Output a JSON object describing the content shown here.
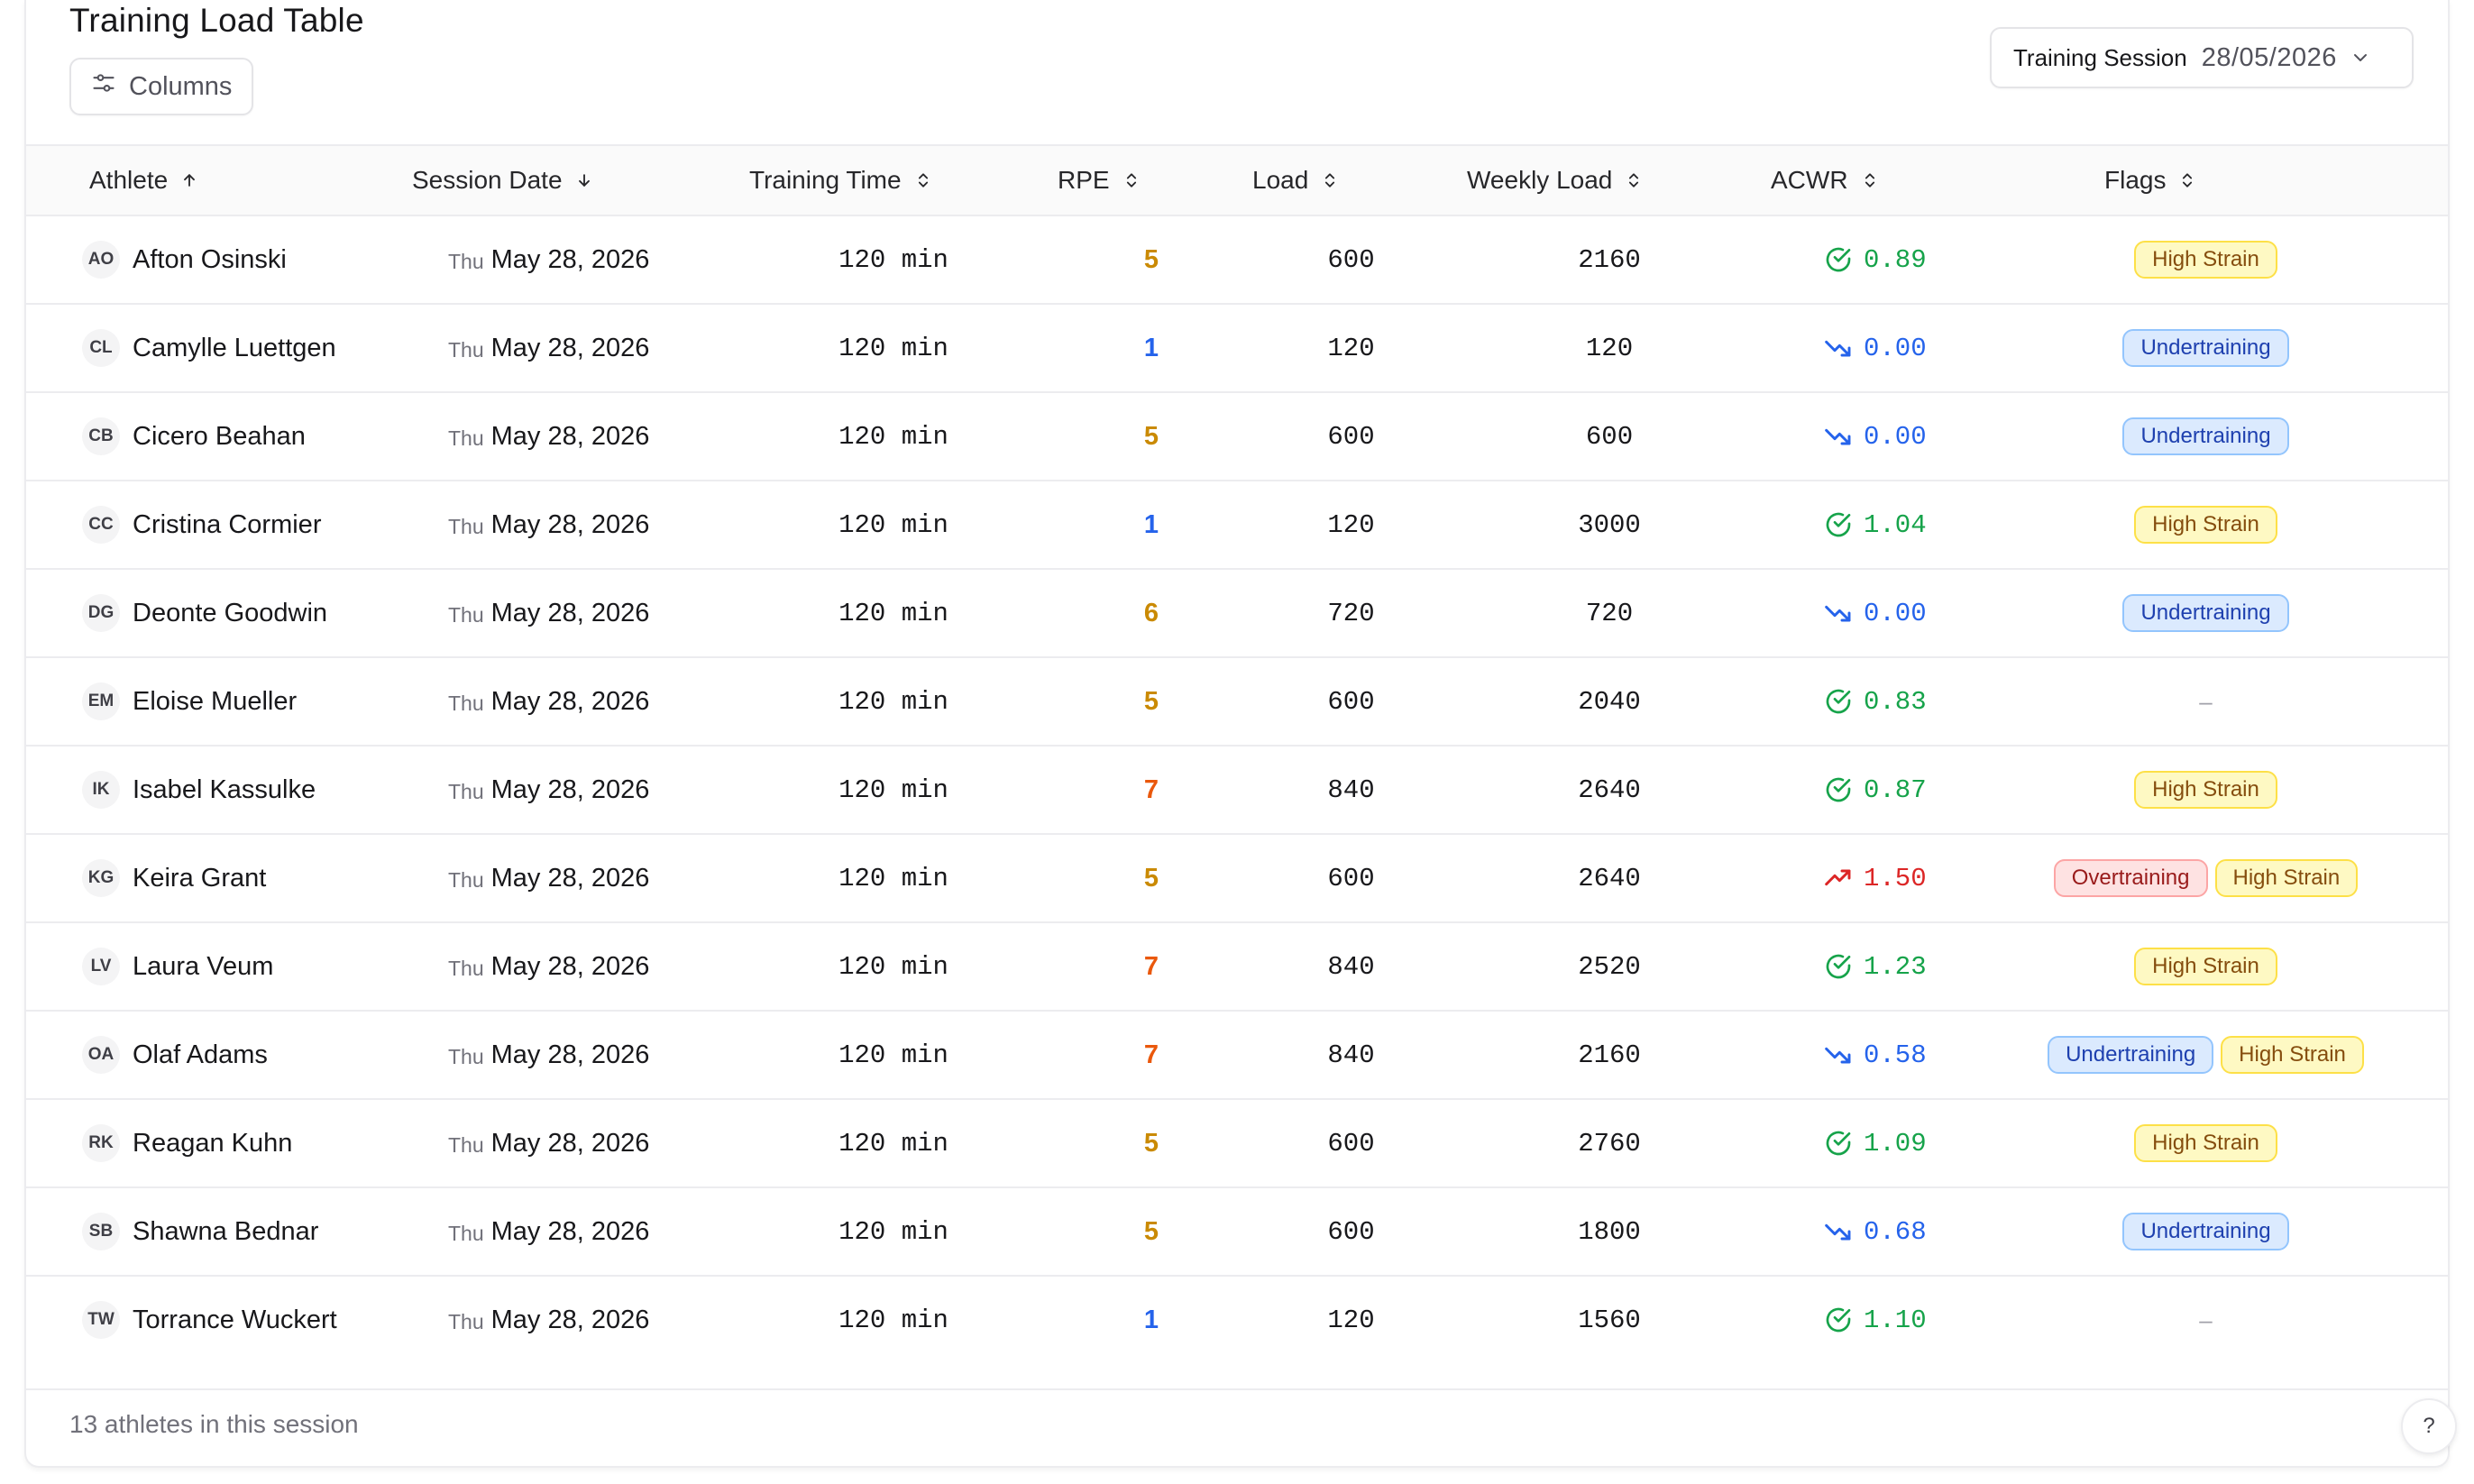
{
  "page": {
    "title": "Training Load Table",
    "columns_button": "Columns",
    "session_label": "Training Session",
    "session_value": "28/05/2026",
    "footer": "13 athletes in this session",
    "help": "?"
  },
  "colors": {
    "rpe_low": "#2563eb",
    "rpe_mid": "#ca8a04",
    "rpe_high": "#ea580c",
    "acwr_ok": "#16a34a",
    "acwr_low": "#2563eb",
    "acwr_high": "#dc2626"
  },
  "columns": [
    {
      "label": "Athlete",
      "sort": "asc"
    },
    {
      "label": "Session Date",
      "sort": "desc"
    },
    {
      "label": "Training Time",
      "sort": "none"
    },
    {
      "label": "RPE",
      "sort": "none"
    },
    {
      "label": "Load",
      "sort": "none"
    },
    {
      "label": "Weekly Load",
      "sort": "none"
    },
    {
      "label": "ACWR",
      "sort": "none"
    },
    {
      "label": "Flags",
      "sort": "none"
    }
  ],
  "rows": [
    {
      "initials": "AO",
      "name": "Afton Osinski",
      "weekday": "Thu",
      "date": "May 28, 2026",
      "time": "120 min",
      "rpe": "5",
      "load": "600",
      "weekly_load": "2160",
      "acwr": "0.89",
      "acwr_status": "ok",
      "flags": [
        "High Strain"
      ]
    },
    {
      "initials": "CL",
      "name": "Camylle Luettgen",
      "weekday": "Thu",
      "date": "May 28, 2026",
      "time": "120 min",
      "rpe": "1",
      "load": "120",
      "weekly_load": "120",
      "acwr": "0.00",
      "acwr_status": "low",
      "flags": [
        "Undertraining"
      ]
    },
    {
      "initials": "CB",
      "name": "Cicero Beahan",
      "weekday": "Thu",
      "date": "May 28, 2026",
      "time": "120 min",
      "rpe": "5",
      "load": "600",
      "weekly_load": "600",
      "acwr": "0.00",
      "acwr_status": "low",
      "flags": [
        "Undertraining"
      ]
    },
    {
      "initials": "CC",
      "name": "Cristina Cormier",
      "weekday": "Thu",
      "date": "May 28, 2026",
      "time": "120 min",
      "rpe": "1",
      "load": "120",
      "weekly_load": "3000",
      "acwr": "1.04",
      "acwr_status": "ok",
      "flags": [
        "High Strain"
      ]
    },
    {
      "initials": "DG",
      "name": "Deonte Goodwin",
      "weekday": "Thu",
      "date": "May 28, 2026",
      "time": "120 min",
      "rpe": "6",
      "load": "720",
      "weekly_load": "720",
      "acwr": "0.00",
      "acwr_status": "low",
      "flags": [
        "Undertraining"
      ]
    },
    {
      "initials": "EM",
      "name": "Eloise Mueller",
      "weekday": "Thu",
      "date": "May 28, 2026",
      "time": "120 min",
      "rpe": "5",
      "load": "600",
      "weekly_load": "2040",
      "acwr": "0.83",
      "acwr_status": "ok",
      "flags": []
    },
    {
      "initials": "IK",
      "name": "Isabel Kassulke",
      "weekday": "Thu",
      "date": "May 28, 2026",
      "time": "120 min",
      "rpe": "7",
      "load": "840",
      "weekly_load": "2640",
      "acwr": "0.87",
      "acwr_status": "ok",
      "flags": [
        "High Strain"
      ]
    },
    {
      "initials": "KG",
      "name": "Keira Grant",
      "weekday": "Thu",
      "date": "May 28, 2026",
      "time": "120 min",
      "rpe": "5",
      "load": "600",
      "weekly_load": "2640",
      "acwr": "1.50",
      "acwr_status": "high",
      "flags": [
        "Overtraining",
        "High Strain"
      ]
    },
    {
      "initials": "LV",
      "name": "Laura Veum",
      "weekday": "Thu",
      "date": "May 28, 2026",
      "time": "120 min",
      "rpe": "7",
      "load": "840",
      "weekly_load": "2520",
      "acwr": "1.23",
      "acwr_status": "ok",
      "flags": [
        "High Strain"
      ]
    },
    {
      "initials": "OA",
      "name": "Olaf Adams",
      "weekday": "Thu",
      "date": "May 28, 2026",
      "time": "120 min",
      "rpe": "7",
      "load": "840",
      "weekly_load": "2160",
      "acwr": "0.58",
      "acwr_status": "low",
      "flags": [
        "Undertraining",
        "High Strain"
      ]
    },
    {
      "initials": "RK",
      "name": "Reagan Kuhn",
      "weekday": "Thu",
      "date": "May 28, 2026",
      "time": "120 min",
      "rpe": "5",
      "load": "600",
      "weekly_load": "2760",
      "acwr": "1.09",
      "acwr_status": "ok",
      "flags": [
        "High Strain"
      ]
    },
    {
      "initials": "SB",
      "name": "Shawna Bednar",
      "weekday": "Thu",
      "date": "May 28, 2026",
      "time": "120 min",
      "rpe": "5",
      "load": "600",
      "weekly_load": "1800",
      "acwr": "0.68",
      "acwr_status": "low",
      "flags": [
        "Undertraining"
      ]
    },
    {
      "initials": "TW",
      "name": "Torrance Wuckert",
      "weekday": "Thu",
      "date": "May 28, 2026",
      "time": "120 min",
      "rpe": "1",
      "load": "120",
      "weekly_load": "1560",
      "acwr": "1.10",
      "acwr_status": "ok",
      "flags": []
    }
  ],
  "empty_flag": "–"
}
